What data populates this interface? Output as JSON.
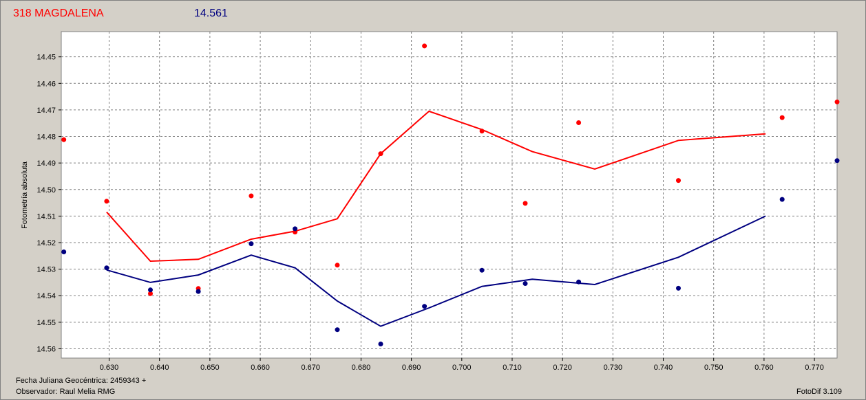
{
  "header": {
    "object_name": "318 MAGDALENA",
    "magnitude": "14.561"
  },
  "footer": {
    "date_label": "Fecha Juliana Geocéntrica: 2459343 +",
    "observer_label": "Observador: Raul Melia RMG",
    "version": "FotoDif 3.109"
  },
  "colors": {
    "series_red": "#ff0000",
    "series_blue": "#000080",
    "background": "#d4d0c8",
    "plot_background": "#ffffff",
    "grid": "#808080"
  },
  "chart_data": {
    "type": "scatter",
    "ylabel": "Fotometría absoluta",
    "xlim": [
      0.6205,
      0.7745
    ],
    "ylim": [
      14.5635,
      14.4405
    ],
    "y_inverted": true,
    "grid": true,
    "x_ticks": [
      "0.630",
      "0.640",
      "0.650",
      "0.660",
      "0.670",
      "0.680",
      "0.690",
      "0.700",
      "0.710",
      "0.720",
      "0.730",
      "0.740",
      "0.750",
      "0.760",
      "0.770"
    ],
    "y_ticks": [
      "14.45",
      "14.46",
      "14.47",
      "14.48",
      "14.49",
      "14.50",
      "14.51",
      "14.52",
      "14.53",
      "14.54",
      "14.55",
      "14.56"
    ],
    "series": [
      {
        "color": "#ff0000",
        "points": [
          {
            "x": 0.621,
            "y": 14.4812
          },
          {
            "x": 0.6295,
            "y": 14.5044
          },
          {
            "x": 0.6382,
            "y": 14.5392
          },
          {
            "x": 0.6477,
            "y": 14.5373
          },
          {
            "x": 0.6582,
            "y": 14.5024
          },
          {
            "x": 0.6669,
            "y": 14.516
          },
          {
            "x": 0.6753,
            "y": 14.5285
          },
          {
            "x": 0.6839,
            "y": 14.4865
          },
          {
            "x": 0.6926,
            "y": 14.4459
          },
          {
            "x": 0.704,
            "y": 14.478
          },
          {
            "x": 0.7126,
            "y": 14.5052
          },
          {
            "x": 0.7232,
            "y": 14.4748
          },
          {
            "x": 0.743,
            "y": 14.4966
          },
          {
            "x": 0.7636,
            "y": 14.4729
          },
          {
            "x": 0.7745,
            "y": 14.467
          }
        ],
        "line": [
          {
            "x": 0.6295,
            "y": 14.5085
          },
          {
            "x": 0.6382,
            "y": 14.527
          },
          {
            "x": 0.6477,
            "y": 14.5263
          },
          {
            "x": 0.6582,
            "y": 14.5187
          },
          {
            "x": 0.6669,
            "y": 14.5157
          },
          {
            "x": 0.6753,
            "y": 14.511
          },
          {
            "x": 0.6839,
            "y": 14.4865
          },
          {
            "x": 0.6935,
            "y": 14.4705
          },
          {
            "x": 0.704,
            "y": 14.4774
          },
          {
            "x": 0.714,
            "y": 14.4857
          },
          {
            "x": 0.7264,
            "y": 14.4923
          },
          {
            "x": 0.743,
            "y": 14.4815
          },
          {
            "x": 0.7603,
            "y": 14.479
          }
        ]
      },
      {
        "color": "#000080",
        "points": [
          {
            "x": 0.621,
            "y": 14.5235
          },
          {
            "x": 0.6295,
            "y": 14.5295
          },
          {
            "x": 0.6382,
            "y": 14.5378
          },
          {
            "x": 0.6477,
            "y": 14.5384
          },
          {
            "x": 0.6582,
            "y": 14.5204
          },
          {
            "x": 0.6669,
            "y": 14.5148
          },
          {
            "x": 0.6753,
            "y": 14.5528
          },
          {
            "x": 0.6839,
            "y": 14.5582
          },
          {
            "x": 0.6926,
            "y": 14.544
          },
          {
            "x": 0.704,
            "y": 14.5304
          },
          {
            "x": 0.7126,
            "y": 14.5354
          },
          {
            "x": 0.7232,
            "y": 14.5348
          },
          {
            "x": 0.743,
            "y": 14.5372
          },
          {
            "x": 0.7636,
            "y": 14.5037
          },
          {
            "x": 0.7745,
            "y": 14.4891
          }
        ],
        "line": [
          {
            "x": 0.6295,
            "y": 14.5303
          },
          {
            "x": 0.6382,
            "y": 14.535
          },
          {
            "x": 0.6477,
            "y": 14.5322
          },
          {
            "x": 0.6582,
            "y": 14.5247
          },
          {
            "x": 0.6669,
            "y": 14.5295
          },
          {
            "x": 0.6753,
            "y": 14.542
          },
          {
            "x": 0.6839,
            "y": 14.5515
          },
          {
            "x": 0.6935,
            "y": 14.5446
          },
          {
            "x": 0.704,
            "y": 14.5365
          },
          {
            "x": 0.714,
            "y": 14.5338
          },
          {
            "x": 0.7264,
            "y": 14.5358
          },
          {
            "x": 0.743,
            "y": 14.5255
          },
          {
            "x": 0.7603,
            "y": 14.51
          }
        ]
      }
    ]
  }
}
